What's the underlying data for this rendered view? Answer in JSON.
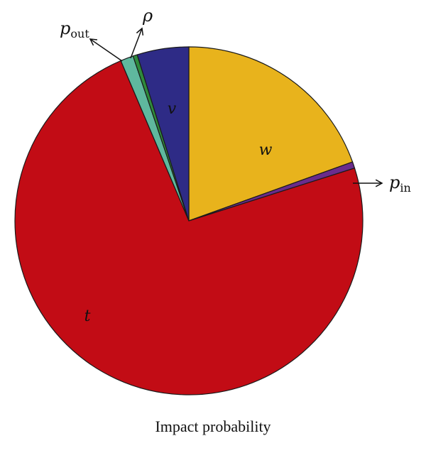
{
  "chart_data": {
    "type": "pie",
    "title": "Impact probability",
    "slices": [
      {
        "label": "w",
        "value": 0.195,
        "color": "#E8B31C",
        "label_position": "inside"
      },
      {
        "label": "p_in",
        "label_main": "p",
        "label_sub": "in",
        "value": 0.006,
        "color": "#6A2C8C",
        "label_position": "outside"
      },
      {
        "label": "t",
        "value": 0.735,
        "color": "#C20C15",
        "label_position": "inside"
      },
      {
        "label": "p_out",
        "label_main": "p",
        "label_sub": "out",
        "value": 0.012,
        "color": "#5FB89E",
        "label_position": "outside"
      },
      {
        "label": "ρ",
        "value": 0.004,
        "color": "#2E8A3C",
        "label_position": "outside"
      },
      {
        "label": "v",
        "value": 0.048,
        "color": "#2E2B86",
        "label_position": "inside"
      }
    ],
    "start_angle": "12 o'clock",
    "direction": "clockwise"
  }
}
